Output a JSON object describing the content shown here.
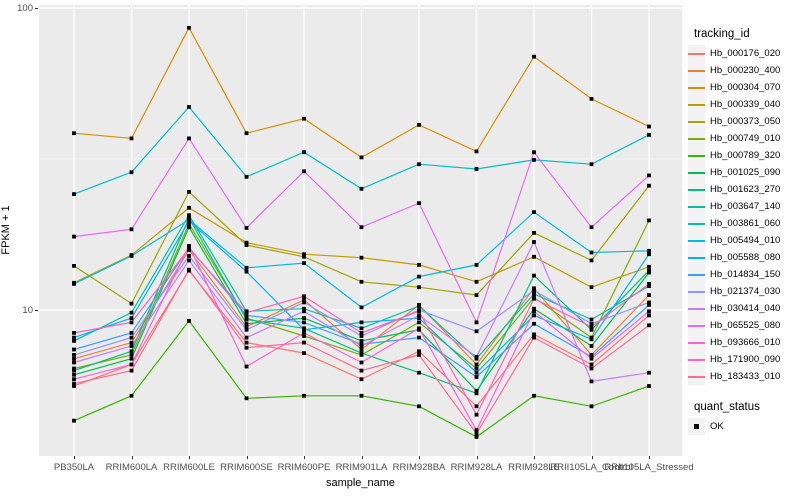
{
  "chart_data": {
    "type": "line",
    "title": "",
    "xlabel": "sample_name",
    "ylabel": "FPKM + 1",
    "y_scale": "log10",
    "ylim": [
      3.3,
      102
    ],
    "grid": true,
    "legend_position": "right",
    "point_marker": "black-square",
    "y_ticks": [
      {
        "label": "100",
        "value": 100
      },
      {
        "label": "10",
        "value": 10
      }
    ],
    "y_minor_gridlines": [
      31.62
    ],
    "categories": [
      "PB350LA",
      "RRIM600LA",
      "RRIM600LE",
      "RRIM600SE",
      "RRIM600PE",
      "RRIM901LA",
      "RRIM928BA",
      "RRIM928LA",
      "RRIM928LE",
      "RRII105LA_Control",
      "RRII105LA_Stressed"
    ],
    "series": [
      {
        "name": "Hb_000176_020",
        "color": "#F8766D",
        "values": [
          5.6,
          6.6,
          13.5,
          7.8,
          7.2,
          5.9,
          7.3,
          4.8,
          8.3,
          6.6,
          9.6
        ]
      },
      {
        "name": "Hb_000230_400",
        "color": "#EA8331",
        "values": [
          6.9,
          7.8,
          15.8,
          8.8,
          10.8,
          7.4,
          10.4,
          6.6,
          11.8,
          7.1,
          11.2
        ]
      },
      {
        "name": "Hb_000304_070",
        "color": "#D89000",
        "values": [
          38.5,
          37.0,
          86.0,
          38.5,
          43.0,
          32.0,
          41.0,
          33.5,
          69.0,
          50.0,
          40.5
        ]
      },
      {
        "name": "Hb_000339_040",
        "color": "#C09B00",
        "values": [
          12.3,
          15.2,
          21.8,
          16.7,
          15.3,
          14.9,
          14.1,
          12.4,
          15.0,
          11.9,
          13.9
        ]
      },
      {
        "name": "Hb_000373_050",
        "color": "#A3A500",
        "values": [
          14.0,
          10.5,
          24.6,
          16.4,
          15.0,
          12.4,
          11.9,
          11.2,
          18.0,
          14.6,
          25.8
        ]
      },
      {
        "name": "Hb_000749_010",
        "color": "#7CAE00",
        "values": [
          6.4,
          7.1,
          19.3,
          9.4,
          8.2,
          7.1,
          9.1,
          6.4,
          11.0,
          8.1,
          19.8
        ]
      },
      {
        "name": "Hb_000789_320",
        "color": "#39B600",
        "values": [
          4.3,
          5.2,
          9.2,
          5.1,
          5.2,
          5.2,
          4.8,
          3.8,
          5.2,
          4.8,
          5.6
        ]
      },
      {
        "name": "Hb_001025_090",
        "color": "#00BB4E",
        "values": [
          6.1,
          6.9,
          18.8,
          9.0,
          9.4,
          7.9,
          8.6,
          5.4,
          10.1,
          7.6,
          13.3
        ]
      },
      {
        "name": "Hb_001623_270",
        "color": "#00BF7D",
        "values": [
          6.3,
          7.3,
          20.2,
          9.3,
          8.7,
          7.2,
          6.2,
          5.3,
          13.0,
          8.6,
          13.5
        ]
      },
      {
        "name": "Hb_003647_140",
        "color": "#00C1A3",
        "values": [
          7.9,
          9.8,
          20.6,
          9.9,
          10.1,
          8.7,
          10.3,
          6.9,
          11.3,
          9.3,
          12.0
        ]
      },
      {
        "name": "Hb_003861_060",
        "color": "#00BFC4",
        "values": [
          24.2,
          28.6,
          47.0,
          27.6,
          33.3,
          25.2,
          30.4,
          29.3,
          31.4,
          30.4,
          38.0
        ]
      },
      {
        "name": "Hb_005494_010",
        "color": "#00BAE0",
        "values": [
          12.2,
          15.1,
          19.9,
          13.8,
          14.3,
          10.2,
          12.9,
          14.1,
          21.1,
          15.5,
          15.7
        ]
      },
      {
        "name": "Hb_005588_080",
        "color": "#00B0F6",
        "values": [
          8.1,
          9.4,
          19.7,
          13.4,
          8.6,
          9.1,
          9.4,
          6.2,
          9.6,
          8.0,
          15.3
        ]
      },
      {
        "name": "Hb_014834_150",
        "color": "#35A2FF",
        "values": [
          7.4,
          8.4,
          16.1,
          9.6,
          9.1,
          7.7,
          8.1,
          6.0,
          9.0,
          7.0,
          10.4
        ]
      },
      {
        "name": "Hb_021374_030",
        "color": "#9590FF",
        "values": [
          7.1,
          8.1,
          15.1,
          8.6,
          10.6,
          8.2,
          10.0,
          8.5,
          11.6,
          9.0,
          10.6
        ]
      },
      {
        "name": "Hb_030414_040",
        "color": "#C77CFF",
        "values": [
          6.7,
          7.6,
          14.6,
          8.1,
          9.9,
          7.6,
          9.6,
          7.0,
          16.8,
          5.8,
          6.2
        ]
      },
      {
        "name": "Hb_065525_080",
        "color": "#E76BF3",
        "values": [
          17.5,
          18.5,
          37.0,
          18.7,
          28.8,
          18.8,
          22.6,
          9.1,
          33.3,
          18.8,
          27.9
        ]
      },
      {
        "name": "Hb_093666_010",
        "color": "#FA62DB",
        "values": [
          5.9,
          6.6,
          16.3,
          6.5,
          8.4,
          6.7,
          8.7,
          4.0,
          9.9,
          6.9,
          9.9
        ]
      },
      {
        "name": "Hb_171900_090",
        "color": "#FF62BC",
        "values": [
          8.4,
          9.1,
          16.0,
          9.8,
          11.1,
          8.4,
          9.9,
          4.5,
          10.9,
          8.8,
          12.2
        ]
      },
      {
        "name": "Hb_183433_010",
        "color": "#FF6A98",
        "values": [
          5.7,
          6.3,
          13.6,
          7.5,
          7.8,
          6.3,
          7.1,
          3.9,
          8.1,
          6.4,
          8.9
        ]
      }
    ],
    "legend": {
      "series_title": "tracking_id",
      "status_title": "quant_status",
      "status_items": [
        {
          "label": "OK",
          "marker": "black-square"
        }
      ]
    }
  },
  "theme": {
    "panel_bg": "#EBEBEB",
    "grid_major": "#FFFFFF",
    "grid_minor": "#F5F5F5",
    "axis_text": "#4D4D4D",
    "title_text": "#000000",
    "legend_key_bg": "#F2F2F2",
    "point_color": "#000000",
    "background": "#FFFFFF"
  }
}
